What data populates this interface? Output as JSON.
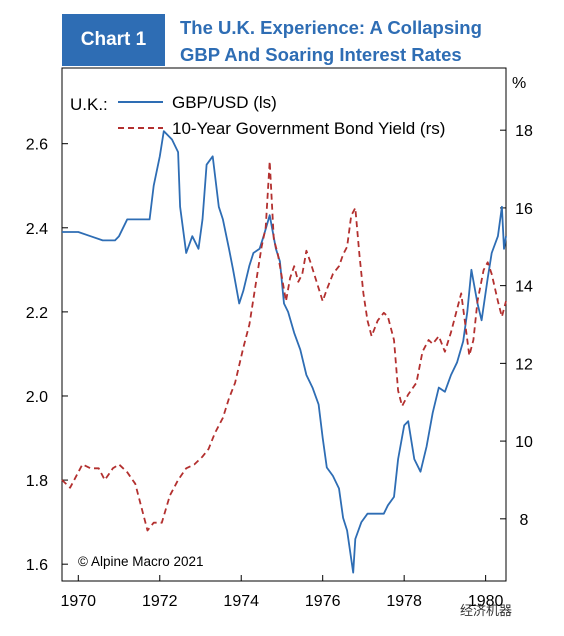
{
  "header": {
    "badge": "Chart 1",
    "title_line1": "The U.K. Experience: A Collapsing",
    "title_line2": "GBP And Soaring Interest Rates"
  },
  "watermark": "经济机器",
  "chart_data": {
    "type": "line",
    "title": "The U.K. Experience: A Collapsing GBP And Soaring Interest Rates",
    "legend_title": "U.K.:",
    "legend_position": "top-left",
    "right_axis_unit": "%",
    "footnote": "© Alpine Macro 2021",
    "xlim": [
      1969.6,
      1980.5
    ],
    "ylim_left": [
      1.56,
      2.78
    ],
    "ylim_right": [
      6.4,
      19.6
    ],
    "x_ticks": [
      1970,
      1972,
      1974,
      1976,
      1978,
      1980
    ],
    "x_tick_labels": [
      "1970",
      "1972",
      "1974",
      "1976",
      "1978",
      "1980"
    ],
    "y_left_ticks": [
      1.6,
      1.8,
      2.0,
      2.2,
      2.4,
      2.6
    ],
    "y_left_tick_labels": [
      "1.6",
      "1.8",
      "2.0",
      "2.2",
      "2.4",
      "2.6"
    ],
    "y_right_ticks": [
      8,
      10,
      12,
      14,
      16,
      18
    ],
    "y_right_tick_labels": [
      "8",
      "10",
      "12",
      "14",
      "16",
      "18"
    ],
    "grid": false,
    "series": [
      {
        "name": "GBP/USD (ls)",
        "axis": "left",
        "color": "#2e6db4",
        "style": "solid",
        "points": [
          [
            1969.6,
            2.39
          ],
          [
            1970.0,
            2.39
          ],
          [
            1970.3,
            2.38
          ],
          [
            1970.6,
            2.37
          ],
          [
            1970.9,
            2.37
          ],
          [
            1971.0,
            2.38
          ],
          [
            1971.2,
            2.42
          ],
          [
            1971.5,
            2.42
          ],
          [
            1971.75,
            2.42
          ],
          [
            1971.85,
            2.5
          ],
          [
            1972.0,
            2.57
          ],
          [
            1972.1,
            2.63
          ],
          [
            1972.3,
            2.61
          ],
          [
            1972.45,
            2.58
          ],
          [
            1972.5,
            2.45
          ],
          [
            1972.65,
            2.34
          ],
          [
            1972.8,
            2.38
          ],
          [
            1972.95,
            2.35
          ],
          [
            1973.05,
            2.42
          ],
          [
            1973.15,
            2.55
          ],
          [
            1973.3,
            2.57
          ],
          [
            1973.45,
            2.45
          ],
          [
            1973.55,
            2.42
          ],
          [
            1973.7,
            2.35
          ],
          [
            1973.8,
            2.3
          ],
          [
            1973.95,
            2.22
          ],
          [
            1974.05,
            2.25
          ],
          [
            1974.2,
            2.31
          ],
          [
            1974.3,
            2.34
          ],
          [
            1974.45,
            2.35
          ],
          [
            1974.55,
            2.38
          ],
          [
            1974.7,
            2.43
          ],
          [
            1974.85,
            2.35
          ],
          [
            1974.95,
            2.32
          ],
          [
            1975.05,
            2.22
          ],
          [
            1975.15,
            2.2
          ],
          [
            1975.3,
            2.15
          ],
          [
            1975.45,
            2.11
          ],
          [
            1975.6,
            2.05
          ],
          [
            1975.75,
            2.02
          ],
          [
            1975.9,
            1.98
          ],
          [
            1976.0,
            1.9
          ],
          [
            1976.1,
            1.83
          ],
          [
            1976.25,
            1.81
          ],
          [
            1976.4,
            1.78
          ],
          [
            1976.5,
            1.71
          ],
          [
            1976.6,
            1.68
          ],
          [
            1976.75,
            1.58
          ],
          [
            1976.8,
            1.66
          ],
          [
            1976.95,
            1.7
          ],
          [
            1977.1,
            1.72
          ],
          [
            1977.3,
            1.72
          ],
          [
            1977.5,
            1.72
          ],
          [
            1977.6,
            1.74
          ],
          [
            1977.75,
            1.76
          ],
          [
            1977.85,
            1.85
          ],
          [
            1978.0,
            1.93
          ],
          [
            1978.1,
            1.94
          ],
          [
            1978.25,
            1.85
          ],
          [
            1978.4,
            1.82
          ],
          [
            1978.55,
            1.88
          ],
          [
            1978.7,
            1.96
          ],
          [
            1978.85,
            2.02
          ],
          [
            1979.0,
            2.01
          ],
          [
            1979.15,
            2.05
          ],
          [
            1979.3,
            2.08
          ],
          [
            1979.45,
            2.13
          ],
          [
            1979.55,
            2.2
          ],
          [
            1979.65,
            2.3
          ],
          [
            1979.8,
            2.22
          ],
          [
            1979.9,
            2.18
          ],
          [
            1980.05,
            2.28
          ],
          [
            1980.15,
            2.34
          ],
          [
            1980.3,
            2.38
          ],
          [
            1980.4,
            2.45
          ],
          [
            1980.45,
            2.35
          ],
          [
            1980.5,
            2.38
          ]
        ]
      },
      {
        "name": "10-Year Government Bond Yield (rs)",
        "axis": "right",
        "color": "#b3302f",
        "style": "dashed",
        "points": [
          [
            1969.6,
            9.0
          ],
          [
            1969.8,
            8.8
          ],
          [
            1970.0,
            9.2
          ],
          [
            1970.1,
            9.4
          ],
          [
            1970.3,
            9.3
          ],
          [
            1970.5,
            9.3
          ],
          [
            1970.65,
            9.0
          ],
          [
            1970.85,
            9.3
          ],
          [
            1971.0,
            9.4
          ],
          [
            1971.2,
            9.2
          ],
          [
            1971.4,
            8.9
          ],
          [
            1971.55,
            8.3
          ],
          [
            1971.7,
            7.7
          ],
          [
            1971.85,
            7.9
          ],
          [
            1972.05,
            7.9
          ],
          [
            1972.25,
            8.6
          ],
          [
            1972.45,
            9.0
          ],
          [
            1972.65,
            9.3
          ],
          [
            1972.85,
            9.4
          ],
          [
            1973.05,
            9.6
          ],
          [
            1973.2,
            9.8
          ],
          [
            1973.35,
            10.2
          ],
          [
            1973.55,
            10.6
          ],
          [
            1973.7,
            11.1
          ],
          [
            1973.85,
            11.5
          ],
          [
            1974.05,
            12.4
          ],
          [
            1974.2,
            13.0
          ],
          [
            1974.35,
            14.0
          ],
          [
            1974.5,
            15.0
          ],
          [
            1974.6,
            15.5
          ],
          [
            1974.7,
            17.2
          ],
          [
            1974.8,
            15.2
          ],
          [
            1974.9,
            14.8
          ],
          [
            1975.0,
            14.2
          ],
          [
            1975.1,
            13.6
          ],
          [
            1975.2,
            14.2
          ],
          [
            1975.3,
            14.5
          ],
          [
            1975.4,
            14.1
          ],
          [
            1975.5,
            14.3
          ],
          [
            1975.6,
            14.9
          ],
          [
            1975.7,
            14.6
          ],
          [
            1975.85,
            14.1
          ],
          [
            1976.0,
            13.6
          ],
          [
            1976.1,
            13.9
          ],
          [
            1976.25,
            14.3
          ],
          [
            1976.4,
            14.5
          ],
          [
            1976.5,
            14.8
          ],
          [
            1976.6,
            15.0
          ],
          [
            1976.7,
            15.8
          ],
          [
            1976.8,
            16.0
          ],
          [
            1976.9,
            14.8
          ],
          [
            1977.0,
            13.8
          ],
          [
            1977.1,
            13.1
          ],
          [
            1977.2,
            12.7
          ],
          [
            1977.35,
            13.1
          ],
          [
            1977.5,
            13.3
          ],
          [
            1977.6,
            13.2
          ],
          [
            1977.75,
            12.6
          ],
          [
            1977.85,
            11.3
          ],
          [
            1977.95,
            10.9
          ],
          [
            1978.1,
            11.2
          ],
          [
            1978.3,
            11.5
          ],
          [
            1978.45,
            12.3
          ],
          [
            1978.6,
            12.6
          ],
          [
            1978.7,
            12.5
          ],
          [
            1978.85,
            12.7
          ],
          [
            1979.0,
            12.3
          ],
          [
            1979.15,
            12.8
          ],
          [
            1979.3,
            13.4
          ],
          [
            1979.4,
            13.8
          ],
          [
            1979.5,
            13.0
          ],
          [
            1979.6,
            12.2
          ],
          [
            1979.7,
            12.6
          ],
          [
            1979.8,
            13.6
          ],
          [
            1979.95,
            14.4
          ],
          [
            1980.05,
            14.6
          ],
          [
            1980.15,
            14.3
          ],
          [
            1980.3,
            13.6
          ],
          [
            1980.4,
            13.2
          ],
          [
            1980.5,
            13.6
          ]
        ]
      }
    ]
  }
}
